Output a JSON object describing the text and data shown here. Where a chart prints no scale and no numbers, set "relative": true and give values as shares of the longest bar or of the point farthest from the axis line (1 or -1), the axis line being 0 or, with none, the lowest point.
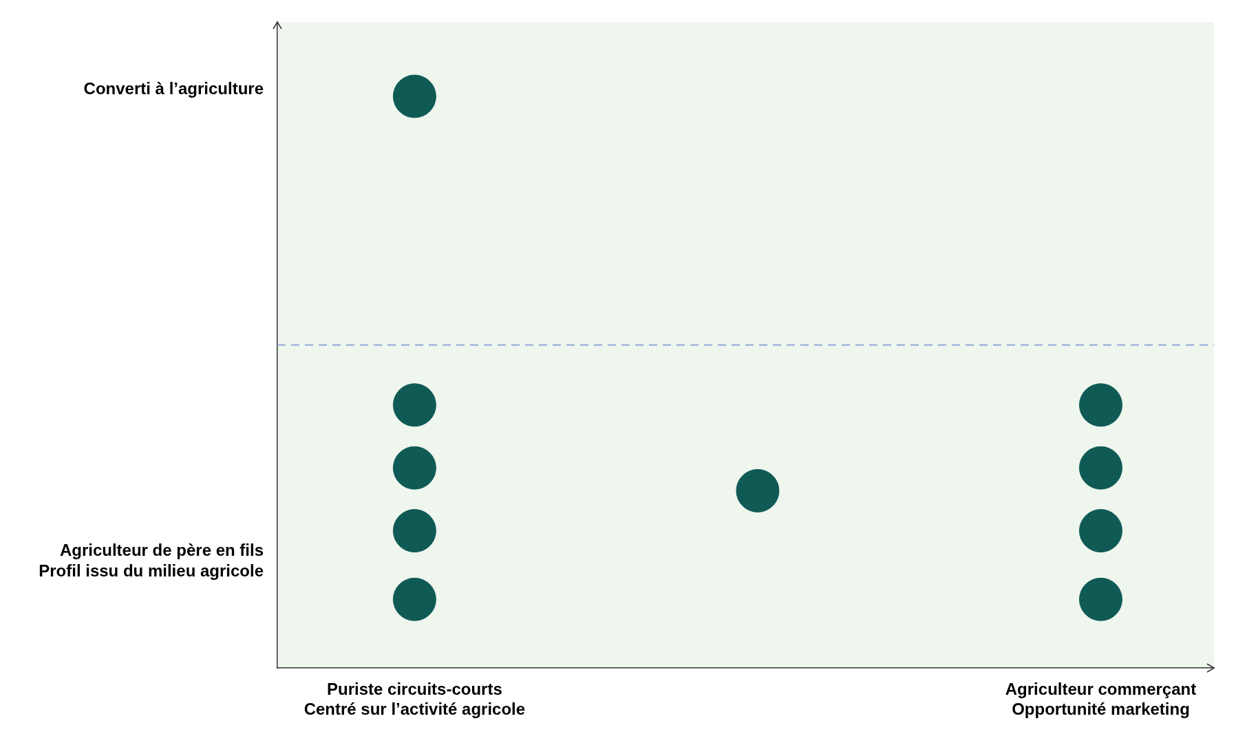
{
  "chart_data": {
    "type": "scatter",
    "categories": [
      "Puriste circuits-courts\nCentré sur l’activité agricole",
      null,
      "Agriculteur commerçant\nOpportunité marketing"
    ],
    "series": [
      {
        "color": "#0f5a55",
        "values": [
          1,
          null,
          null
        ]
      },
      {
        "color": "#0f5a55",
        "values": [
          0.46,
          null,
          0.46
        ]
      },
      {
        "color": "#0f5a55",
        "values": [
          0.35,
          0.31,
          0.35
        ]
      },
      {
        "color": "#0f5a55",
        "values": [
          0.24,
          null,
          0.24
        ]
      },
      {
        "color": "#0f5a55",
        "values": [
          0.12,
          null,
          0.12
        ]
      }
    ],
    "relative": true,
    "marker": "circle",
    "annotations": [
      "Converti à l’agriculture",
      "Agriculteur de père en fils\nProfil issu du milieu agricole"
    ],
    "ref_lines": [
      {
        "axis": "y",
        "value": 0.565,
        "color": "#8fa8d8",
        "line_style": "dashed"
      }
    ],
    "legend": false
  }
}
